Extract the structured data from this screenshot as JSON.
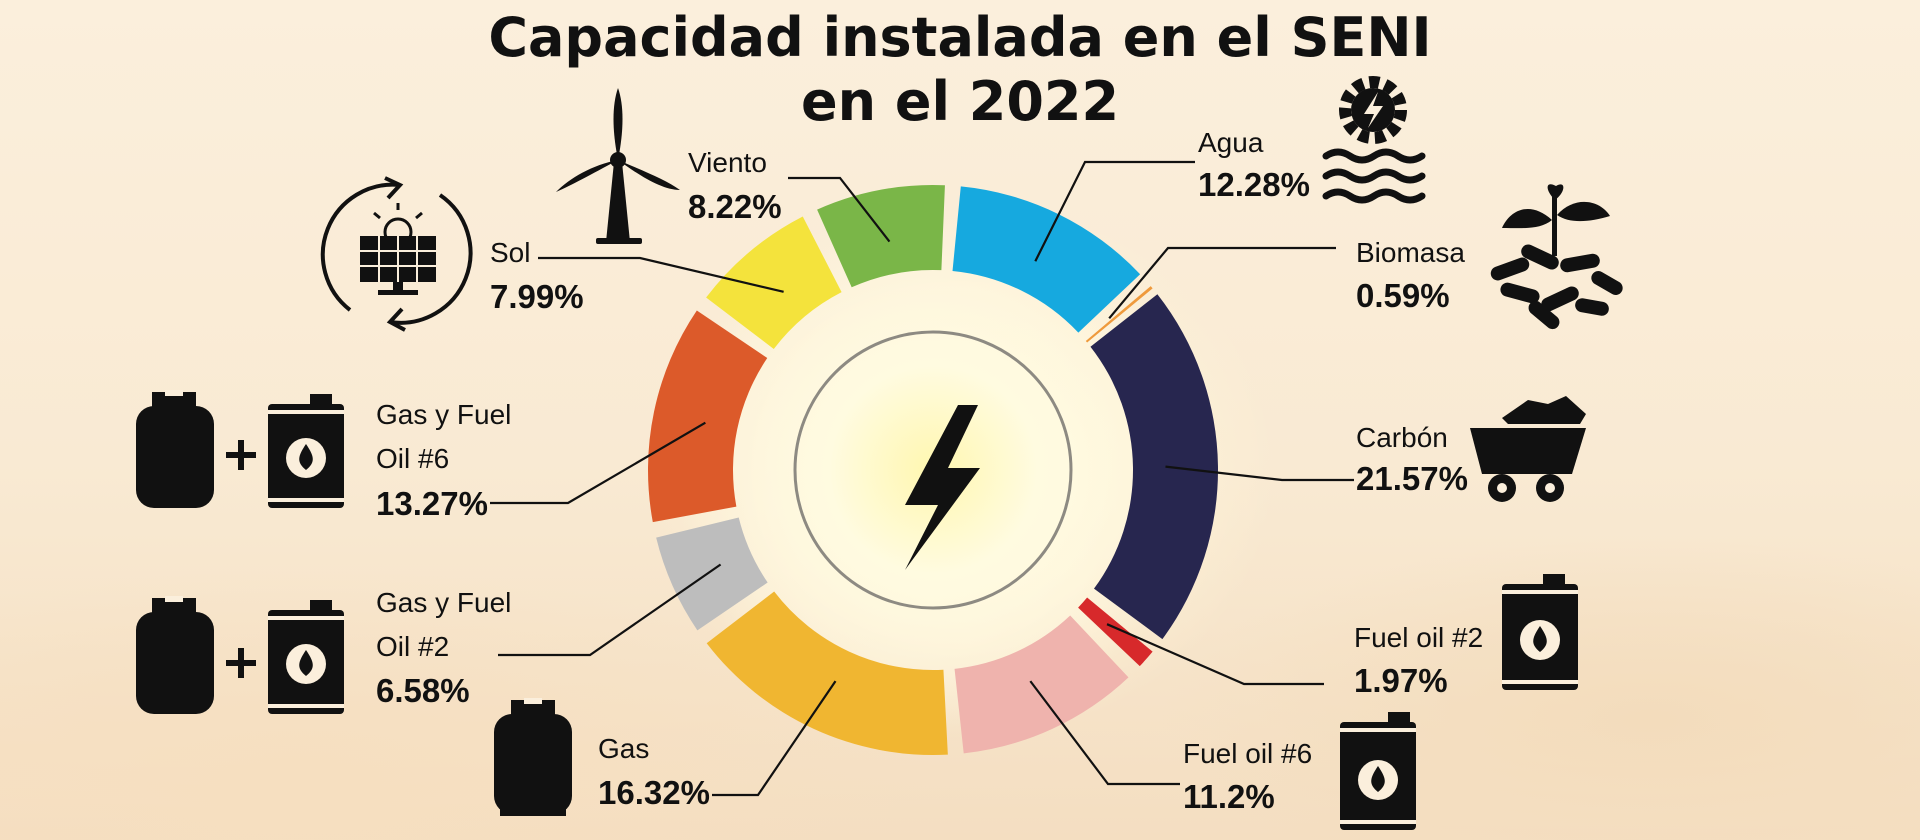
{
  "title_line1": "Capacidad instalada en el SENI",
  "title_line2": "en el 2022",
  "chart_data": {
    "type": "pie",
    "title": "Capacidad instalada en el SENI en el 2022",
    "unit": "%",
    "slices": [
      {
        "name": "Agua",
        "value": 12.28,
        "value_label": "12.28%",
        "color": "#16a9df",
        "icon": "hydro-gear-waves-icon"
      },
      {
        "name": "Biomasa",
        "value": 0.59,
        "value_label": "0.59%",
        "color": "#ef9a3c",
        "icon": "plant-pellets-icon"
      },
      {
        "name": "Carbón",
        "value": 21.57,
        "value_label": "21.57%",
        "color": "#27264f",
        "icon": "coal-cart-icon"
      },
      {
        "name": "Fuel oil #2",
        "value": 1.97,
        "value_label": "1.97%",
        "color": "#d7292b",
        "icon": "oil-barrel-icon"
      },
      {
        "name": "Fuel oil #6",
        "value": 11.2,
        "value_label": "11.2%",
        "color": "#efb3ad",
        "icon": "oil-barrel-icon"
      },
      {
        "name": "Gas",
        "value": 16.32,
        "value_label": "16.32%",
        "color": "#f0b631",
        "icon": "gas-cylinder-icon"
      },
      {
        "name": "Gas y Fuel Oil #2",
        "value": 6.58,
        "value_label": "6.58%",
        "color": "#bdbdbd",
        "icon": "gas-cylinder-plus-barrel-icon"
      },
      {
        "name": "Gas y Fuel Oil #6",
        "value": 13.27,
        "value_label": "13.27%",
        "color": "#dc5a2a",
        "icon": "gas-cylinder-plus-barrel-icon"
      },
      {
        "name": "Sol",
        "value": 7.99,
        "value_label": "7.99%",
        "color": "#f4e33c",
        "icon": "solar-panel-icon"
      },
      {
        "name": "Viento",
        "value": 8.22,
        "value_label": "8.22%",
        "color": "#7ab648",
        "icon": "wind-turbine-icon"
      }
    ]
  }
}
